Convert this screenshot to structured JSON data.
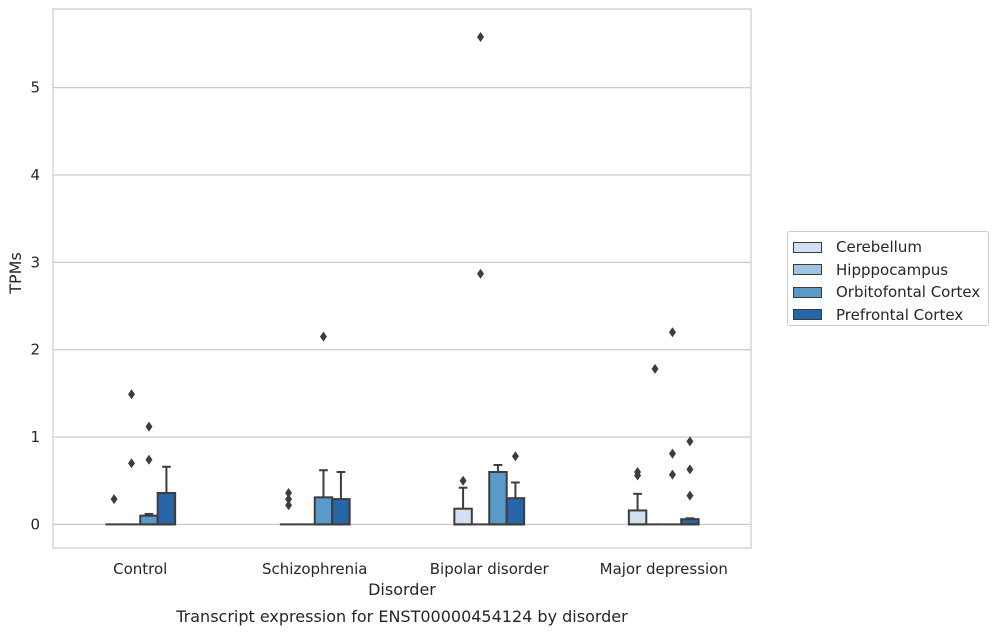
{
  "chart_data": {
    "type": "box",
    "caption": "Transcript expression for ENST00000454124 by disorder",
    "xlabel": "Disorder",
    "ylabel": "TPMs",
    "ylim": [
      -0.27,
      5.9
    ],
    "yticks": [
      0,
      1,
      2,
      3,
      4,
      5
    ],
    "grid": "horizontal",
    "legend_position": "right",
    "categories": [
      "Control",
      "Schizophrenia",
      "Bipolar disorder",
      "Major depression"
    ],
    "series": [
      {
        "name": "Cerebellum",
        "color": "#d0e0f0",
        "boxes": [
          {
            "q1": 0,
            "median": 0,
            "q3": 0,
            "whislo": 0,
            "whishi": 0,
            "fliers": [
              0.29
            ]
          },
          {
            "q1": 0,
            "median": 0,
            "q3": 0,
            "whislo": 0,
            "whishi": 0,
            "fliers": [
              0.22,
              0.29,
              0.36
            ]
          },
          {
            "q1": 0,
            "median": 0,
            "q3": 0.18,
            "whislo": 0,
            "whishi": 0.42,
            "fliers": [
              0.5
            ]
          },
          {
            "q1": 0,
            "median": 0,
            "q3": 0.16,
            "whislo": 0,
            "whishi": 0.35,
            "fliers": [
              0.56,
              0.6
            ]
          }
        ]
      },
      {
        "name": "Hipppocampus",
        "color": "#9dc4e2",
        "boxes": [
          {
            "q1": 0,
            "median": 0,
            "q3": 0,
            "whislo": 0,
            "whishi": 0,
            "fliers": [
              0.7,
              1.49
            ]
          },
          {
            "q1": 0,
            "median": 0,
            "q3": 0,
            "whislo": 0,
            "whishi": 0,
            "fliers": []
          },
          {
            "q1": 0,
            "median": 0,
            "q3": 0,
            "whislo": 0,
            "whishi": 0,
            "fliers": [
              2.87,
              5.58
            ]
          },
          {
            "q1": 0,
            "median": 0,
            "q3": 0,
            "whislo": 0,
            "whishi": 0,
            "fliers": [
              1.78
            ]
          }
        ]
      },
      {
        "name": "Orbitofontal Cortex",
        "color": "#5a9ac8",
        "boxes": [
          {
            "q1": 0,
            "median": 0,
            "q3": 0.1,
            "whislo": 0,
            "whishi": 0.12,
            "fliers": [
              0.74,
              1.12
            ]
          },
          {
            "q1": 0,
            "median": 0,
            "q3": 0.31,
            "whislo": 0,
            "whishi": 0.62,
            "fliers": [
              2.15
            ]
          },
          {
            "q1": 0,
            "median": 0,
            "q3": 0.6,
            "whislo": 0,
            "whishi": 0.68,
            "fliers": []
          },
          {
            "q1": 0,
            "median": 0,
            "q3": 0,
            "whislo": 0,
            "whishi": 0,
            "fliers": [
              0.57,
              0.81,
              2.2
            ]
          }
        ]
      },
      {
        "name": "Prefrontal Cortex",
        "color": "#2765a8",
        "boxes": [
          {
            "q1": 0,
            "median": 0,
            "q3": 0.36,
            "whislo": 0,
            "whishi": 0.66,
            "fliers": []
          },
          {
            "q1": 0,
            "median": 0,
            "q3": 0.29,
            "whislo": 0,
            "whishi": 0.6,
            "fliers": []
          },
          {
            "q1": 0,
            "median": 0,
            "q3": 0.3,
            "whislo": 0,
            "whishi": 0.48,
            "fliers": [
              0.78
            ]
          },
          {
            "q1": 0,
            "median": 0,
            "q3": 0.06,
            "whislo": 0,
            "whishi": 0.07,
            "fliers": [
              0.33,
              0.63,
              0.95
            ]
          }
        ]
      }
    ]
  }
}
